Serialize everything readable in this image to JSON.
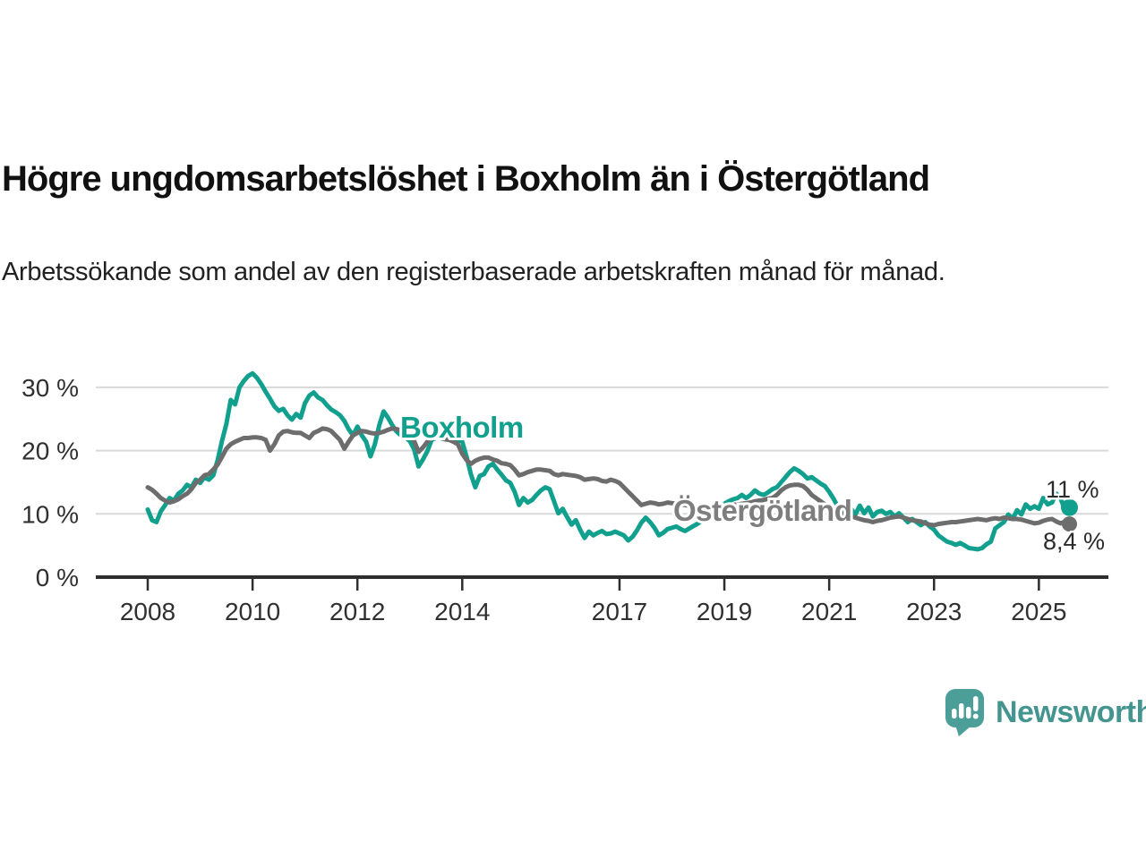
{
  "header": {
    "title": "Högre ungdomsarbetslöshet i Boxholm än i Östergötland",
    "subtitle": "Arbetssökande som andel av den registerbaserade arbetskraften månad för månad."
  },
  "chart_data": {
    "type": "line",
    "unit": "%",
    "frequency": "monthly",
    "x_start": "2008-01",
    "x_end": "2025-08",
    "x_axis": {
      "tick_labels": [
        "2008",
        "2010",
        "2012",
        "2014",
        "2017",
        "2019",
        "2021",
        "2023",
        "2025"
      ],
      "tick_years": [
        2008,
        2010,
        2012,
        2014,
        2017,
        2019,
        2021,
        2023,
        2025
      ]
    },
    "y_axis": {
      "ticks": [
        0,
        10,
        20,
        30
      ],
      "tick_labels": [
        "0 %",
        "10 %",
        "20 %",
        "30 %"
      ],
      "range": [
        0,
        33
      ],
      "grid": true
    },
    "legend_position": "inline-labels",
    "series": [
      {
        "name": "Boxholm",
        "color": "#12A08E",
        "label_color": "#12A08E",
        "end_label": "11 %",
        "values": [
          10.7,
          9.0,
          8.7,
          10.4,
          11.4,
          12.5,
          12.1,
          13.2,
          13.7,
          14.6,
          14.2,
          15.4,
          14.9,
          15.8,
          15.4,
          16.1,
          18.5,
          21.5,
          24.2,
          28.0,
          27.3,
          30.0,
          31.0,
          31.8,
          32.2,
          31.5,
          30.5,
          29.3,
          28.2,
          27.0,
          26.3,
          26.6,
          25.6,
          24.9,
          25.8,
          25.2,
          27.5,
          28.7,
          29.2,
          28.4,
          28.0,
          27.2,
          26.5,
          26.1,
          25.6,
          24.7,
          23.4,
          22.4,
          23.8,
          22.4,
          21.4,
          19.1,
          21.0,
          24.0,
          26.2,
          25.2,
          24.0,
          23.0,
          22.4,
          22.1,
          21.5,
          20.2,
          17.5,
          18.6,
          19.9,
          21.7,
          22.0,
          22.0,
          21.9,
          22.1,
          22.0,
          21.7,
          21.4,
          19.0,
          16.2,
          14.2,
          16.0,
          16.3,
          17.5,
          17.9,
          17.0,
          16.2,
          15.3,
          14.9,
          13.5,
          11.4,
          12.5,
          11.8,
          12.2,
          13.0,
          13.7,
          14.2,
          13.9,
          12.0,
          10.1,
          10.8,
          9.5,
          8.3,
          9.0,
          7.5,
          6.2,
          7.2,
          6.6,
          7.0,
          7.3,
          6.8,
          6.9,
          7.2,
          6.9,
          6.6,
          5.8,
          6.4,
          7.4,
          8.6,
          9.4,
          8.7,
          7.8,
          6.6,
          7.0,
          7.6,
          7.8,
          8.0,
          7.6,
          7.3,
          7.7,
          8.1,
          8.5,
          9.0,
          9.5,
          10.1,
          10.7,
          11.2,
          11.6,
          12.0,
          12.3,
          12.5,
          13.0,
          12.5,
          13.0,
          13.7,
          13.2,
          13.0,
          13.4,
          13.9,
          14.2,
          15.0,
          15.8,
          16.6,
          17.2,
          16.8,
          16.3,
          15.6,
          15.8,
          15.3,
          14.8,
          14.4,
          13.5,
          12.4,
          11.1,
          10.7,
          10.3,
          10.8,
          9.9,
          11.3,
          10.1,
          11.0,
          9.6,
          10.3,
          10.5,
          10.0,
          10.3,
          9.6,
          10.1,
          9.4,
          8.7,
          9.2,
          8.7,
          8.2,
          8.7,
          8.0,
          7.5,
          6.6,
          6.1,
          5.6,
          5.4,
          5.1,
          5.4,
          5.0,
          4.6,
          4.5,
          4.4,
          4.6,
          5.2,
          5.6,
          7.7,
          8.2,
          8.7,
          9.9,
          9.2,
          10.6,
          9.9,
          11.5,
          10.8,
          11.2,
          10.8,
          12.5,
          11.5,
          11.8,
          13.2,
          12.4,
          10.6,
          11.0
        ]
      },
      {
        "name": "Östergötland",
        "color": "#6D6D6D",
        "label_color": "#7E7E7E",
        "end_label": "8,4 %",
        "values": [
          14.2,
          13.8,
          13.2,
          12.5,
          12.1,
          11.8,
          12.0,
          12.3,
          12.8,
          13.2,
          13.9,
          14.9,
          15.4,
          16.1,
          16.3,
          17.0,
          17.8,
          19.0,
          20.3,
          21.0,
          21.4,
          21.7,
          22.0,
          22.0,
          22.1,
          22.1,
          22.0,
          21.7,
          20.0,
          21.0,
          22.4,
          23.0,
          23.1,
          22.9,
          22.8,
          22.8,
          22.4,
          22.0,
          22.8,
          23.1,
          23.5,
          23.4,
          23.1,
          22.4,
          21.7,
          20.3,
          21.4,
          22.4,
          22.8,
          23.1,
          23.0,
          22.8,
          22.7,
          22.8,
          23.0,
          23.3,
          23.5,
          23.4,
          23.2,
          22.8,
          22.4,
          21.5,
          19.8,
          20.5,
          21.4,
          22.0,
          22.1,
          22.0,
          21.8,
          21.7,
          21.4,
          21.0,
          19.5,
          18.5,
          17.9,
          18.4,
          18.7,
          18.9,
          18.9,
          18.6,
          18.4,
          18.0,
          17.9,
          17.7,
          17.0,
          16.1,
          16.3,
          16.6,
          16.8,
          17.0,
          17.0,
          16.9,
          16.8,
          16.3,
          16.1,
          16.3,
          16.2,
          16.1,
          16.0,
          15.8,
          15.4,
          15.5,
          15.6,
          15.5,
          15.2,
          15.1,
          15.4,
          15.2,
          14.9,
          14.2,
          13.5,
          12.8,
          12.1,
          11.4,
          11.6,
          11.8,
          11.7,
          11.5,
          11.6,
          11.8,
          11.7,
          11.6,
          11.5,
          11.4,
          11.3,
          11.2,
          11.0,
          10.9,
          10.8,
          10.9,
          11.0,
          11.1,
          11.2,
          11.3,
          11.4,
          11.5,
          11.6,
          11.7,
          11.8,
          12.0,
          12.1,
          12.2,
          12.4,
          12.5,
          13.0,
          13.7,
          14.2,
          14.5,
          14.6,
          14.6,
          14.4,
          13.8,
          13.0,
          12.5,
          12.0,
          11.5,
          11.0,
          10.5,
          10.2,
          10.0,
          9.9,
          9.7,
          9.4,
          9.2,
          9.0,
          8.9,
          8.7,
          8.9,
          9.0,
          9.2,
          9.4,
          9.5,
          9.6,
          9.4,
          9.2,
          9.0,
          8.9,
          8.8,
          8.5,
          8.3,
          8.2,
          8.4,
          8.5,
          8.6,
          8.7,
          8.7,
          8.8,
          8.9,
          9.0,
          9.1,
          9.2,
          9.1,
          9.0,
          9.2,
          9.3,
          9.2,
          9.4,
          9.3,
          9.2,
          9.2,
          9.1,
          8.9,
          8.7,
          8.5,
          8.6,
          8.9,
          9.1,
          9.2,
          8.8,
          8.5,
          8.8,
          8.4
        ]
      }
    ],
    "colors": {
      "axis": "#2E2E2E",
      "grid": "#D9D9D9",
      "tick_text": "#303030",
      "end_label_text": "#2B2B2B"
    }
  },
  "branding": {
    "logo_text": "Newsworthy",
    "logo_color": "#44958F",
    "logo_icon": "bar-chart-speech-bubble"
  }
}
